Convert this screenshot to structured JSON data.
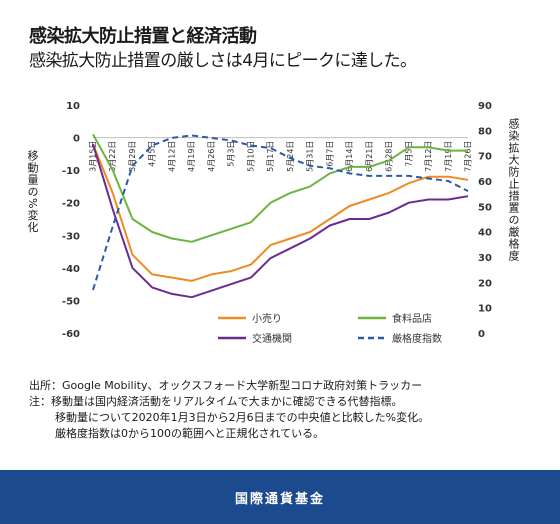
{
  "header": {
    "title": "感染拡大防止措置と経済活動",
    "subtitle": "感染拡大防止措置の厳しさは4月にピークに達した。"
  },
  "notes": {
    "source": "出所：Google Mobility、オックスフォード大学新型コロナ政府対策トラッカー",
    "note1": "注：移動量は国内経済活動をリアルタイムで大まかに確認できる代替指標。",
    "note2": "移動量について2020年1月3日から2月6日までの中央値と比較した%変化。",
    "note3": "厳格度指数は0から100の範囲へと正規化されている。"
  },
  "footer": {
    "org": "国際通貨基金"
  },
  "chart_data": {
    "type": "line",
    "title": "",
    "ylabel": "移動量の%変化",
    "y2label": "感染拡大防止措置の厳格度",
    "ylim": [
      -60,
      10
    ],
    "y2lim": [
      0,
      90
    ],
    "yticks": [
      "10",
      "0",
      "-10",
      "-20",
      "-30",
      "-40",
      "-50",
      "-60"
    ],
    "y2ticks": [
      "90",
      "80",
      "70",
      "60",
      "50",
      "40",
      "30",
      "20",
      "10",
      "0"
    ],
    "categories": [
      "3月15日",
      "3月22日",
      "3月29日",
      "4月5日",
      "4月12日",
      "4月19日",
      "4月26日",
      "5月3日",
      "5月10日",
      "5月17日",
      "5月24日",
      "5月31日",
      "6月7日",
      "6月14日",
      "6月21日",
      "6月28日",
      "7月5日",
      "7月12日",
      "7月19日",
      "7月26日"
    ],
    "legend_position": "bottom",
    "series": [
      {
        "name": "小売り",
        "axis": "left",
        "color": "#f08a24",
        "values": [
          -2,
          -17,
          -36,
          -42,
          -43,
          -44,
          -42,
          -41,
          -39,
          -33,
          -31,
          -29,
          -25,
          -21,
          -19,
          -17,
          -14,
          -12,
          -12,
          -13
        ]
      },
      {
        "name": "食料品店",
        "axis": "left",
        "color": "#6db33f",
        "values": [
          1,
          -10,
          -25,
          -29,
          -31,
          -32,
          -30,
          -28,
          -26,
          -20,
          -17,
          -15,
          -11,
          -9,
          -9,
          -7,
          -3,
          -3,
          -4,
          -4
        ]
      },
      {
        "name": "交通機関",
        "axis": "left",
        "color": "#6a2c91",
        "values": [
          -2,
          -22,
          -40,
          -46,
          -48,
          -49,
          -47,
          -45,
          -43,
          -37,
          -34,
          -31,
          -27,
          -25,
          -25,
          -23,
          -20,
          -19,
          -19,
          -18
        ]
      },
      {
        "name": "厳格度指数",
        "axis": "right",
        "color": "#2a5aa8",
        "dashed": true,
        "values": [
          17,
          42,
          66,
          74,
          77,
          78,
          77,
          76,
          74,
          73,
          69,
          66,
          65,
          63,
          62,
          62,
          62,
          61,
          60,
          56
        ]
      }
    ]
  }
}
